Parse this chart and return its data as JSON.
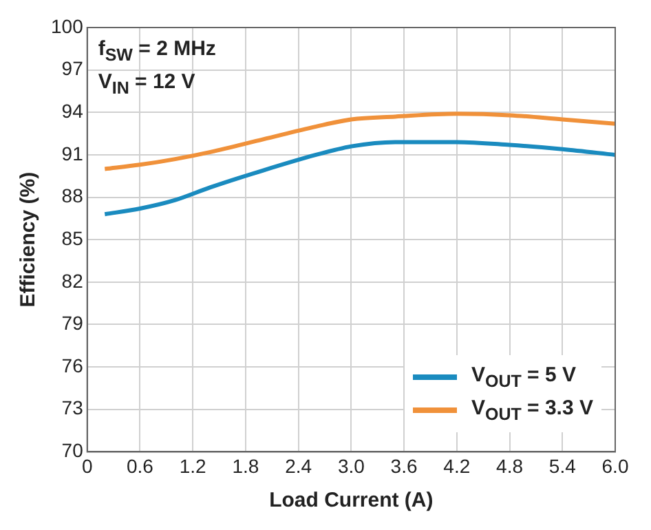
{
  "chart_data": {
    "type": "line",
    "xlabel": "Load Current (A)",
    "ylabel": "Efficiency (%)",
    "annotations": [
      "f$_{SW}$ = 2 MHz",
      "V$_{IN}$ = 12 V"
    ],
    "xlim": [
      0,
      6
    ],
    "xticks": [
      0,
      {
        "value": 0.6,
        "label": "0.6"
      },
      {
        "value": 1.2,
        "label": "1.2"
      },
      {
        "value": 1.8,
        "label": "1.8"
      },
      {
        "value": 2.4,
        "label": "2.4"
      },
      {
        "value": 3,
        "label": "3.0"
      },
      {
        "value": 3.6,
        "label": "3.6"
      },
      {
        "value": 4.2,
        "label": "4.2"
      },
      {
        "value": 4.8,
        "label": "4.8"
      },
      {
        "value": 5.4,
        "label": "5.4"
      },
      {
        "value": 6,
        "label": "6.0"
      }
    ],
    "ylim": [
      70,
      100
    ],
    "yticks": [
      70,
      73,
      76,
      79,
      82,
      85,
      88,
      91,
      94,
      97,
      100
    ],
    "grid": true,
    "legend": "bottom right",
    "marker": "none",
    "line_style": "solid",
    "x": [
      0.2,
      0.6,
      1.0,
      1.4,
      2.0,
      2.6,
      3.0,
      3.5,
      4.2,
      4.8,
      5.4,
      6.0
    ],
    "series": [
      {
        "name": "V$_{OUT}$ = 5 V",
        "color": "#1a8bbf",
        "values": [
          86.8,
          87.2,
          87.8,
          88.7,
          89.9,
          91.0,
          91.6,
          91.9,
          91.9,
          91.7,
          91.4,
          91.0
        ]
      },
      {
        "name": "V$_{OUT}$ = 3.3 V",
        "color": "#f0913a",
        "values": [
          90.0,
          90.3,
          90.7,
          91.2,
          92.1,
          93.0,
          93.5,
          93.7,
          93.9,
          93.8,
          93.5,
          93.2
        ]
      }
    ]
  }
}
